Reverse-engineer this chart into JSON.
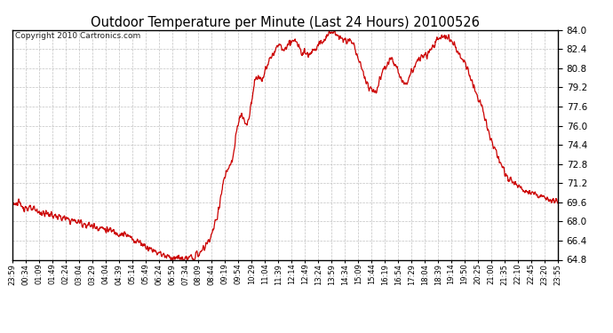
{
  "title": "Outdoor Temperature per Minute (Last 24 Hours) 20100526",
  "copyright": "Copyright 2010 Cartronics.com",
  "line_color": "#cc0000",
  "background_color": "#ffffff",
  "grid_color": "#bbbbbb",
  "ylim": [
    64.8,
    84.0
  ],
  "yticks": [
    64.8,
    66.4,
    68.0,
    69.6,
    71.2,
    72.8,
    74.4,
    76.0,
    77.6,
    79.2,
    80.8,
    82.4,
    84.0
  ],
  "xtick_labels": [
    "23:59",
    "00:34",
    "01:09",
    "01:49",
    "02:24",
    "03:04",
    "03:29",
    "04:04",
    "04:39",
    "05:14",
    "05:49",
    "06:24",
    "06:59",
    "07:34",
    "08:09",
    "08:44",
    "09:19",
    "09:54",
    "10:29",
    "11:04",
    "11:39",
    "12:14",
    "12:49",
    "13:24",
    "13:59",
    "14:34",
    "15:09",
    "15:44",
    "16:19",
    "16:54",
    "17:29",
    "18:04",
    "18:39",
    "19:14",
    "19:50",
    "20:25",
    "21:00",
    "21:35",
    "22:10",
    "22:45",
    "23:20",
    "23:55"
  ],
  "figsize": [
    6.9,
    3.75
  ],
  "dpi": 100
}
